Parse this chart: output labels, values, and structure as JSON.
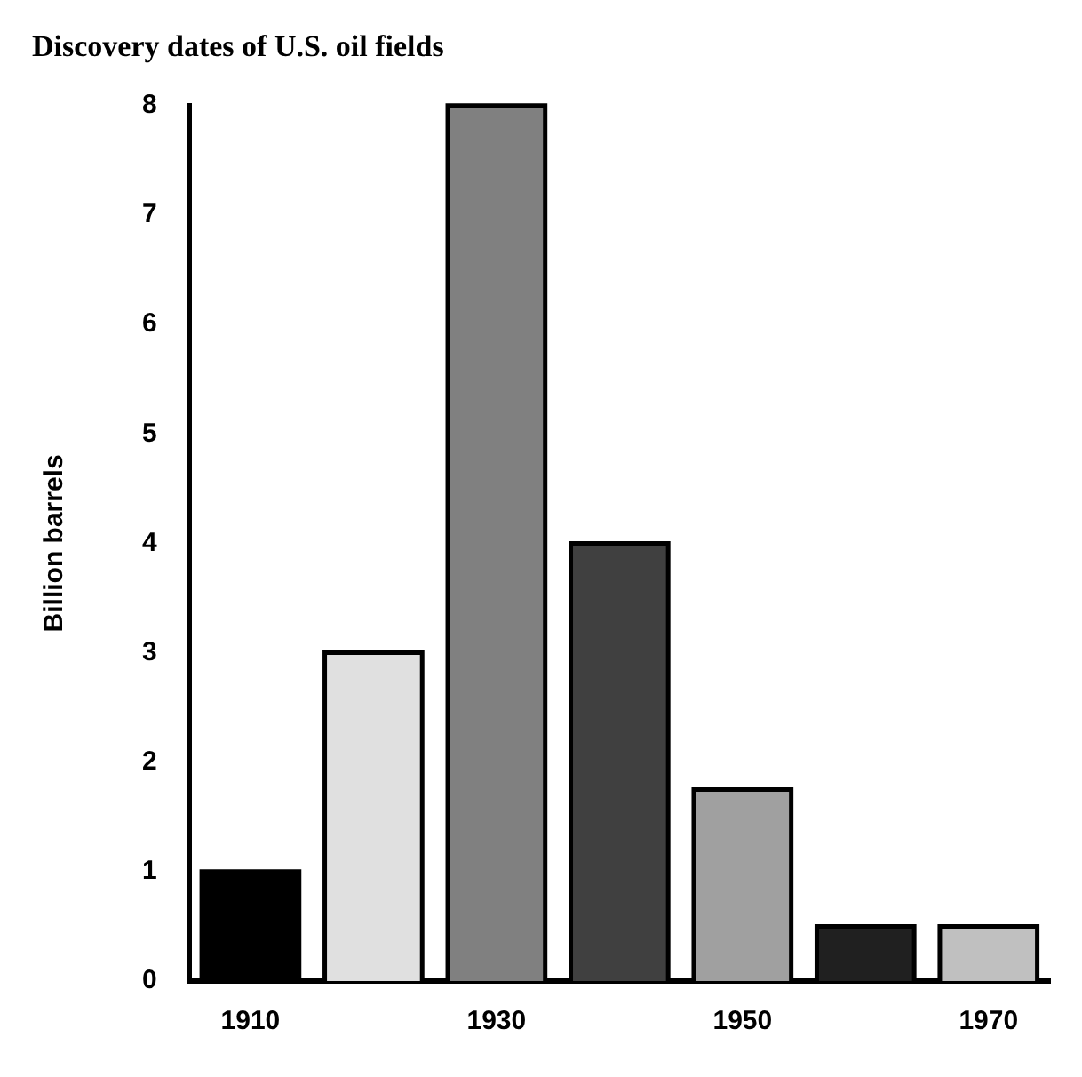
{
  "chart_data": {
    "type": "bar",
    "title": "Discovery dates of U.S. oil fields",
    "ylabel": "Billion barrels",
    "categories": [
      "1910",
      null,
      "1930",
      null,
      "1950",
      null,
      "1970"
    ],
    "values": [
      1,
      3,
      8,
      4,
      1.75,
      0.5,
      0.5
    ],
    "colors": [
      "#000000",
      "#e0e0e0",
      "#808080",
      "#404040",
      "#a0a0a0",
      "#202020",
      "#c0c0c0"
    ],
    "ylim": [
      0,
      8
    ],
    "yticks": [
      0,
      1,
      2,
      3,
      4,
      5,
      6,
      7,
      8
    ],
    "grid": false,
    "legend": false
  }
}
